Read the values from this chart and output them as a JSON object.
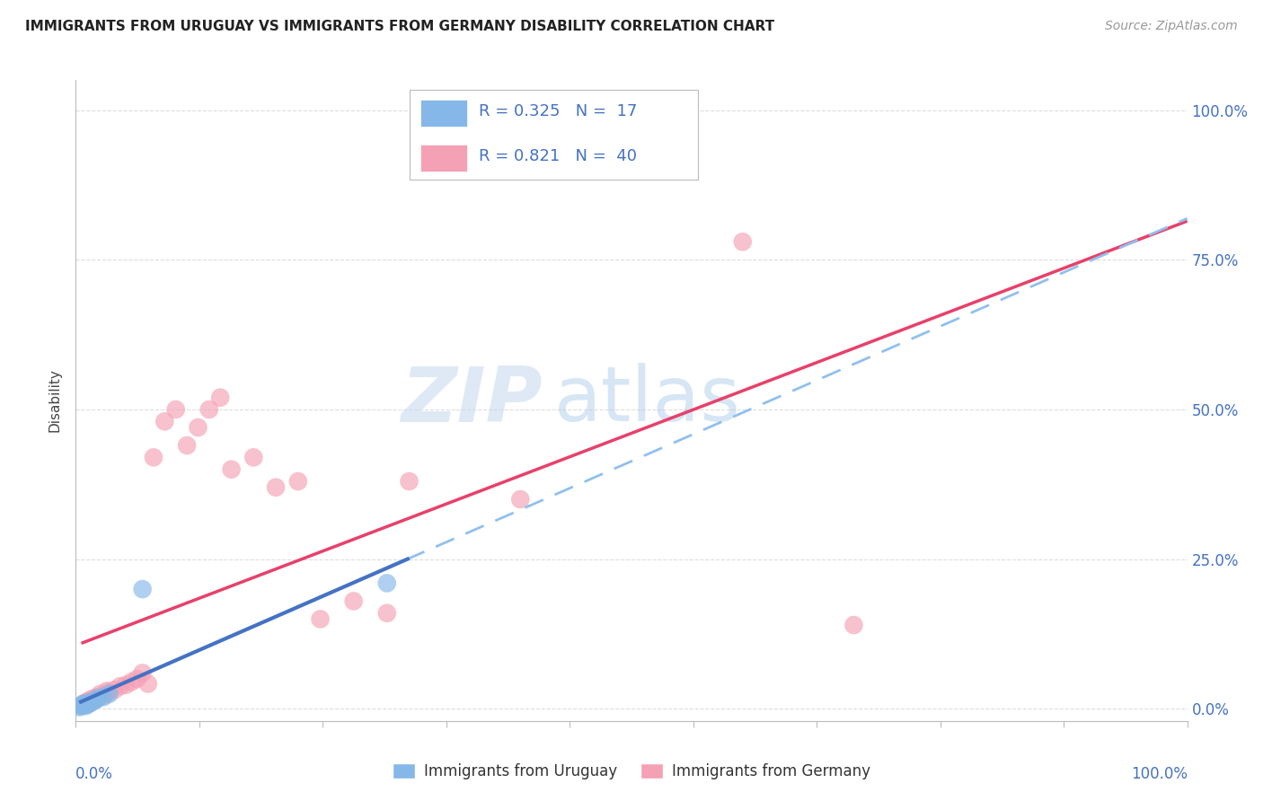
{
  "title": "IMMIGRANTS FROM URUGUAY VS IMMIGRANTS FROM GERMANY DISABILITY CORRELATION CHART",
  "source": "Source: ZipAtlas.com",
  "ylabel": "Disability",
  "ytick_labels": [
    "0.0%",
    "25.0%",
    "50.0%",
    "75.0%",
    "100.0%"
  ],
  "ytick_values": [
    0.0,
    0.25,
    0.5,
    0.75,
    1.0
  ],
  "xlim": [
    0.0,
    1.0
  ],
  "ylim": [
    -0.02,
    1.05
  ],
  "legend_r_uruguay": "R = 0.325",
  "legend_n_uruguay": "N =  17",
  "legend_r_germany": "R = 0.821",
  "legend_n_germany": "N =  40",
  "color_uruguay": "#85B8E8",
  "color_germany": "#F4A0B5",
  "color_regression_uruguay_solid": "#4472C4",
  "color_regression_uruguay_dashed": "#90C0EE",
  "color_regression_germany": "#E8406A",
  "watermark_zip": "ZIP",
  "watermark_atlas": "atlas",
  "background_color": "#FFFFFF",
  "grid_color": "#DDDDDD",
  "uruguay_points": [
    [
      0.005,
      0.005
    ],
    [
      0.006,
      0.008
    ],
    [
      0.007,
      0.006
    ],
    [
      0.008,
      0.007
    ],
    [
      0.009,
      0.005
    ],
    [
      0.01,
      0.01
    ],
    [
      0.011,
      0.008
    ],
    [
      0.012,
      0.009
    ],
    [
      0.013,
      0.01
    ],
    [
      0.015,
      0.012
    ],
    [
      0.018,
      0.015
    ],
    [
      0.02,
      0.018
    ],
    [
      0.025,
      0.02
    ],
    [
      0.03,
      0.025
    ],
    [
      0.06,
      0.2
    ],
    [
      0.28,
      0.21
    ],
    [
      0.003,
      0.003
    ]
  ],
  "germany_points": [
    [
      0.005,
      0.005
    ],
    [
      0.007,
      0.008
    ],
    [
      0.008,
      0.01
    ],
    [
      0.009,
      0.007
    ],
    [
      0.01,
      0.012
    ],
    [
      0.012,
      0.01
    ],
    [
      0.013,
      0.015
    ],
    [
      0.015,
      0.013
    ],
    [
      0.016,
      0.018
    ],
    [
      0.018,
      0.016
    ],
    [
      0.02,
      0.02
    ],
    [
      0.022,
      0.025
    ],
    [
      0.025,
      0.022
    ],
    [
      0.028,
      0.03
    ],
    [
      0.03,
      0.028
    ],
    [
      0.035,
      0.032
    ],
    [
      0.04,
      0.038
    ],
    [
      0.045,
      0.04
    ],
    [
      0.05,
      0.045
    ],
    [
      0.055,
      0.05
    ],
    [
      0.06,
      0.06
    ],
    [
      0.065,
      0.042
    ],
    [
      0.07,
      0.42
    ],
    [
      0.08,
      0.48
    ],
    [
      0.09,
      0.5
    ],
    [
      0.1,
      0.44
    ],
    [
      0.11,
      0.47
    ],
    [
      0.12,
      0.5
    ],
    [
      0.13,
      0.52
    ],
    [
      0.14,
      0.4
    ],
    [
      0.16,
      0.42
    ],
    [
      0.18,
      0.37
    ],
    [
      0.2,
      0.38
    ],
    [
      0.22,
      0.15
    ],
    [
      0.25,
      0.18
    ],
    [
      0.28,
      0.16
    ],
    [
      0.3,
      0.38
    ],
    [
      0.4,
      0.35
    ],
    [
      0.6,
      0.78
    ],
    [
      0.7,
      0.14
    ]
  ],
  "uru_line_x_start": 0.003,
  "uru_line_x_solid_end": 0.3,
  "uru_line_x_dash_end": 1.0,
  "ger_line_x_start": 0.005,
  "ger_line_x_end": 1.0
}
